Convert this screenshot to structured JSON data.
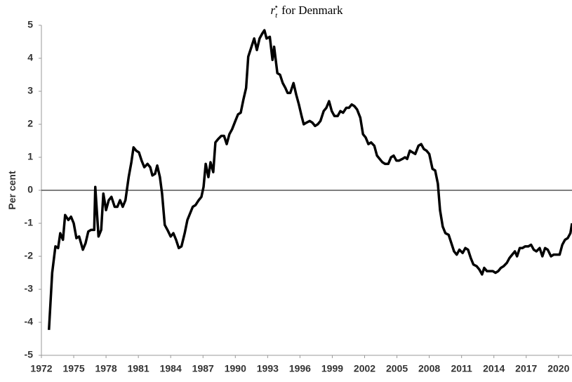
{
  "chart_data": {
    "type": "line",
    "title": {
      "symbol": "r",
      "subscript": "t",
      "superscript": "⋆",
      "text": "for Denmark"
    },
    "y_label": "Per cent",
    "color": "#000000",
    "zero_line": true,
    "xlim": [
      1972,
      2021.25
    ],
    "ylim": [
      -5,
      5
    ],
    "xticks": [
      1972,
      1975,
      1978,
      1981,
      1984,
      1987,
      1990,
      1993,
      1996,
      1999,
      2002,
      2005,
      2008,
      2011,
      2014,
      2017,
      2020
    ],
    "yticks": [
      -5,
      -4,
      -3,
      -2,
      -1,
      0,
      1,
      2,
      3,
      4,
      5
    ],
    "x": [
      1972.7,
      1973.0,
      1973.3,
      1973.55,
      1973.75,
      1974.0,
      1974.2,
      1974.5,
      1974.75,
      1975.0,
      1975.25,
      1975.5,
      1975.85,
      1976.1,
      1976.35,
      1976.6,
      1976.9,
      1977.0,
      1977.3,
      1977.55,
      1977.75,
      1978.0,
      1978.25,
      1978.5,
      1978.8,
      1979.05,
      1979.3,
      1979.55,
      1979.8,
      1980.1,
      1980.35,
      1980.55,
      1980.8,
      1981.05,
      1981.3,
      1981.55,
      1981.85,
      1982.1,
      1982.3,
      1982.55,
      1982.75,
      1983.0,
      1983.2,
      1983.45,
      1983.7,
      1984.0,
      1984.25,
      1984.5,
      1984.75,
      1985.0,
      1985.3,
      1985.55,
      1985.8,
      1986.05,
      1986.3,
      1986.6,
      1986.85,
      1987.05,
      1987.25,
      1987.5,
      1987.7,
      1987.95,
      1988.15,
      1988.4,
      1988.7,
      1988.95,
      1989.2,
      1989.45,
      1989.7,
      1990.0,
      1990.25,
      1990.5,
      1990.75,
      1991.0,
      1991.2,
      1991.45,
      1991.75,
      1992.0,
      1992.25,
      1992.5,
      1992.7,
      1992.9,
      1993.2,
      1993.45,
      1993.6,
      1993.9,
      1994.15,
      1994.4,
      1994.65,
      1994.85,
      1995.1,
      1995.4,
      1995.65,
      1995.9,
      1996.15,
      1996.35,
      1996.6,
      1996.9,
      1997.15,
      1997.4,
      1997.65,
      1997.9,
      1998.2,
      1998.45,
      1998.7,
      1998.95,
      1999.2,
      1999.5,
      1999.75,
      2000.0,
      2000.3,
      2000.55,
      2000.8,
      2001.05,
      2001.3,
      2001.6,
      2001.85,
      2002.1,
      2002.35,
      2002.6,
      2002.9,
      2003.15,
      2003.4,
      2003.65,
      2003.9,
      2004.2,
      2004.45,
      2004.7,
      2004.95,
      2005.2,
      2005.5,
      2005.75,
      2005.95,
      2006.2,
      2006.45,
      2006.7,
      2007.0,
      2007.25,
      2007.5,
      2007.75,
      2008.0,
      2008.3,
      2008.55,
      2008.8,
      2009.0,
      2009.25,
      2009.5,
      2009.8,
      2010.05,
      2010.3,
      2010.55,
      2010.8,
      2011.1,
      2011.35,
      2011.6,
      2011.85,
      2012.1,
      2012.4,
      2012.65,
      2012.9,
      2013.1,
      2013.35,
      2013.6,
      2013.9,
      2014.15,
      2014.4,
      2014.65,
      2014.9,
      2015.2,
      2015.45,
      2015.7,
      2015.95,
      2016.15,
      2016.4,
      2016.65,
      2016.9,
      2017.2,
      2017.45,
      2017.7,
      2017.95,
      2018.25,
      2018.5,
      2018.75,
      2019.0,
      2019.3,
      2019.55,
      2019.8,
      2020.1,
      2020.35,
      2020.6,
      2020.85,
      2021.1,
      2021.25
    ],
    "values": [
      -4.23,
      -2.5,
      -1.7,
      -1.75,
      -1.3,
      -1.5,
      -0.75,
      -0.9,
      -0.8,
      -1.0,
      -1.45,
      -1.4,
      -1.8,
      -1.6,
      -1.25,
      -1.2,
      -1.2,
      0.1,
      -1.4,
      -1.2,
      -0.1,
      -0.6,
      -0.3,
      -0.2,
      -0.5,
      -0.5,
      -0.3,
      -0.5,
      -0.3,
      0.4,
      0.85,
      1.3,
      1.2,
      1.15,
      0.9,
      0.7,
      0.8,
      0.7,
      0.45,
      0.5,
      0.75,
      0.4,
      -0.1,
      -1.05,
      -1.2,
      -1.4,
      -1.3,
      -1.5,
      -1.75,
      -1.7,
      -1.3,
      -0.9,
      -0.7,
      -0.5,
      -0.45,
      -0.3,
      -0.2,
      0.1,
      0.8,
      0.4,
      0.85,
      0.55,
      1.45,
      1.55,
      1.65,
      1.65,
      1.4,
      1.7,
      1.85,
      2.1,
      2.3,
      2.35,
      2.75,
      3.1,
      4.05,
      4.3,
      4.6,
      4.25,
      4.6,
      4.75,
      4.85,
      4.6,
      4.65,
      3.95,
      4.35,
      3.55,
      3.5,
      3.25,
      3.1,
      2.95,
      2.95,
      3.25,
      2.9,
      2.6,
      2.25,
      2.0,
      2.05,
      2.1,
      2.05,
      1.95,
      2.0,
      2.1,
      2.4,
      2.5,
      2.7,
      2.4,
      2.25,
      2.25,
      2.4,
      2.35,
      2.5,
      2.5,
      2.6,
      2.55,
      2.45,
      2.2,
      1.7,
      1.6,
      1.4,
      1.45,
      1.35,
      1.05,
      0.95,
      0.85,
      0.8,
      0.8,
      1.0,
      1.05,
      0.9,
      0.9,
      0.95,
      1.0,
      0.95,
      1.2,
      1.15,
      1.1,
      1.35,
      1.4,
      1.25,
      1.2,
      1.1,
      0.65,
      0.6,
      0.2,
      -0.6,
      -1.1,
      -1.3,
      -1.35,
      -1.6,
      -1.85,
      -1.95,
      -1.8,
      -1.9,
      -1.75,
      -1.8,
      -2.05,
      -2.25,
      -2.3,
      -2.4,
      -2.55,
      -2.35,
      -2.45,
      -2.45,
      -2.45,
      -2.5,
      -2.45,
      -2.35,
      -2.3,
      -2.2,
      -2.05,
      -1.95,
      -1.85,
      -2.0,
      -1.75,
      -1.75,
      -1.7,
      -1.7,
      -1.65,
      -1.8,
      -1.85,
      -1.75,
      -2.0,
      -1.75,
      -1.8,
      -2.0,
      -1.95,
      -1.95,
      -1.95,
      -1.65,
      -1.5,
      -1.45,
      -1.3,
      -1.0
    ]
  }
}
